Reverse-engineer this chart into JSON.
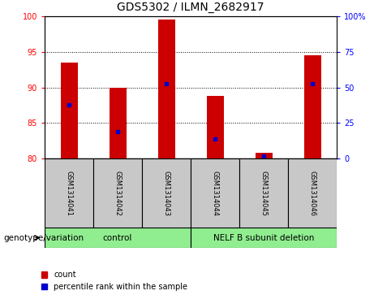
{
  "title": "GDS5302 / ILMN_2682917",
  "samples": [
    "GSM1314041",
    "GSM1314042",
    "GSM1314043",
    "GSM1314044",
    "GSM1314045",
    "GSM1314046"
  ],
  "count_values": [
    93.5,
    90.0,
    99.5,
    88.8,
    80.8,
    94.5
  ],
  "percentile_values": [
    87.5,
    83.8,
    90.5,
    82.7,
    80.3,
    90.5
  ],
  "ylim_left": [
    80,
    100
  ],
  "ylim_right": [
    0,
    100
  ],
  "yticks_left": [
    80,
    85,
    90,
    95,
    100
  ],
  "yticks_right": [
    0,
    25,
    50,
    75,
    100
  ],
  "ytick_labels_right": [
    "0",
    "25",
    "50",
    "75",
    "100%"
  ],
  "bar_color": "#CC0000",
  "dot_color": "#0000CC",
  "bar_width": 0.35,
  "sample_box_color": "#C8C8C8",
  "group_box_color": "#90EE90",
  "genotype_label": "genotype/variation",
  "legend_count": "count",
  "legend_percentile": "percentile rank within the sample",
  "control_label": "control",
  "nelf_label": "NELF B subunit deletion"
}
